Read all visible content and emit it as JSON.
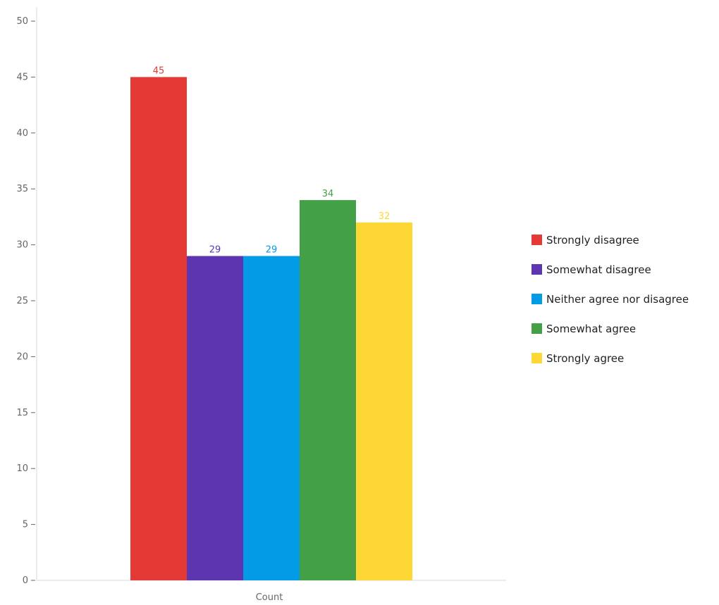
{
  "chart_data": {
    "type": "bar",
    "categories": [
      "Count"
    ],
    "series": [
      {
        "name": "Strongly disagree",
        "values": [
          45
        ],
        "color": "#e53935"
      },
      {
        "name": "Somewhat disagree",
        "values": [
          29
        ],
        "color": "#5e35b1"
      },
      {
        "name": "Neither agree nor disagree",
        "values": [
          29
        ],
        "color": "#039be5"
      },
      {
        "name": "Somewhat agree",
        "values": [
          34
        ],
        "color": "#43a047"
      },
      {
        "name": "Strongly agree",
        "values": [
          32
        ],
        "color": "#fdd835"
      }
    ],
    "title": "",
    "xlabel": "",
    "ylabel": "",
    "ylim": [
      0,
      50
    ],
    "yticks": [
      0,
      5,
      10,
      15,
      20,
      25,
      30,
      35,
      40,
      45,
      50
    ],
    "grid": false,
    "legend_position": "right"
  }
}
